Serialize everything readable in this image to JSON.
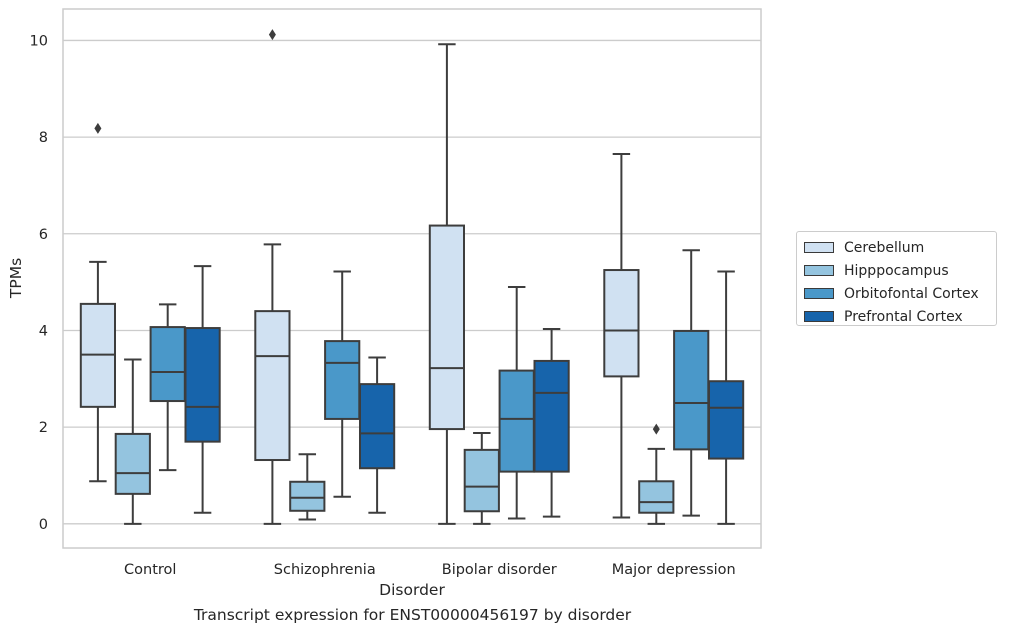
{
  "chart_data": {
    "type": "box",
    "title": "",
    "xlabel": "Disorder",
    "ylabel": "TPMs",
    "caption": "Transcript expression for ENST00000456197 by disorder",
    "categories": [
      "Control",
      "Schizophrenia",
      "Bipolar disorder",
      "Major depression"
    ],
    "ylim": [
      -0.5,
      10.65
    ],
    "yticks": [
      0,
      2,
      4,
      6,
      8,
      10
    ],
    "grid": "horizontal",
    "legend_position": "right",
    "series": [
      {
        "name": "Cerebellum",
        "color": "#d0e1f2",
        "boxes": [
          {
            "min": 0.88,
            "q1": 2.42,
            "median": 3.5,
            "q3": 4.55,
            "max": 5.42,
            "outliers": [
              8.18
            ]
          },
          {
            "min": 0.0,
            "q1": 1.32,
            "median": 3.47,
            "q3": 4.4,
            "max": 5.78,
            "outliers": [
              10.12
            ]
          },
          {
            "min": 0.0,
            "q1": 1.96,
            "median": 3.22,
            "q3": 6.17,
            "max": 9.92,
            "outliers": []
          },
          {
            "min": 0.13,
            "q1": 3.05,
            "median": 4.0,
            "q3": 5.25,
            "max": 7.65,
            "outliers": []
          }
        ]
      },
      {
        "name": "Hipppocampus",
        "color": "#94c4df",
        "boxes": [
          {
            "min": 0.0,
            "q1": 0.62,
            "median": 1.05,
            "q3": 1.86,
            "max": 3.4,
            "outliers": []
          },
          {
            "min": 0.09,
            "q1": 0.27,
            "median": 0.54,
            "q3": 0.87,
            "max": 1.44,
            "outliers": []
          },
          {
            "min": 0.0,
            "q1": 0.26,
            "median": 0.77,
            "q3": 1.53,
            "max": 1.88,
            "outliers": []
          },
          {
            "min": 0.0,
            "q1": 0.23,
            "median": 0.45,
            "q3": 0.88,
            "max": 1.55,
            "outliers": [
              1.96
            ]
          }
        ]
      },
      {
        "name": "Orbitofontal Cortex",
        "color": "#4a98c9",
        "boxes": [
          {
            "min": 1.11,
            "q1": 2.54,
            "median": 3.14,
            "q3": 4.07,
            "max": 4.54,
            "outliers": []
          },
          {
            "min": 0.56,
            "q1": 2.17,
            "median": 3.33,
            "q3": 3.78,
            "max": 5.22,
            "outliers": []
          },
          {
            "min": 0.11,
            "q1": 1.08,
            "median": 2.17,
            "q3": 3.17,
            "max": 4.9,
            "outliers": []
          },
          {
            "min": 0.17,
            "q1": 1.54,
            "median": 2.5,
            "q3": 3.99,
            "max": 5.66,
            "outliers": []
          }
        ]
      },
      {
        "name": "Prefrontal Cortex",
        "color": "#1764ab",
        "boxes": [
          {
            "min": 0.23,
            "q1": 1.7,
            "median": 2.42,
            "q3": 4.05,
            "max": 5.33,
            "outliers": []
          },
          {
            "min": 0.23,
            "q1": 1.15,
            "median": 1.87,
            "q3": 2.89,
            "max": 3.44,
            "outliers": []
          },
          {
            "min": 0.15,
            "q1": 1.08,
            "median": 2.71,
            "q3": 3.37,
            "max": 4.03,
            "outliers": []
          },
          {
            "min": 0.0,
            "q1": 1.35,
            "median": 2.4,
            "q3": 2.95,
            "max": 5.22,
            "outliers": []
          }
        ]
      }
    ]
  }
}
